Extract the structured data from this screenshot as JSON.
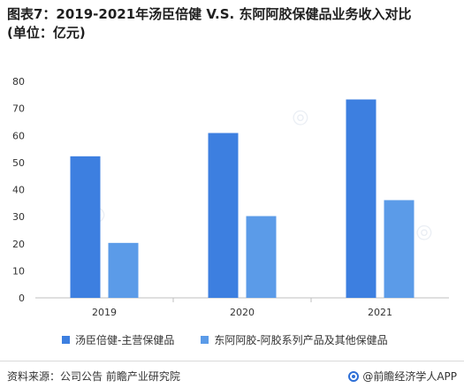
{
  "title": {
    "line1": "图表7：2019-2021年汤臣倍健 V.S. 东阿阿胶保健品业务收入对比",
    "line2": "(单位：亿元)"
  },
  "chart_data": {
    "type": "bar",
    "categories": [
      "2019",
      "2020",
      "2021"
    ],
    "series": [
      {
        "name": "汤臣倍健-主营保健品",
        "values": [
          52.3,
          60.9,
          73.3
        ],
        "color": "#3d7fe0"
      },
      {
        "name": "东阿阿胶-阿胶系列产品及其他保健品",
        "values": [
          20.3,
          30.2,
          36.1
        ],
        "color": "#5b9be8"
      }
    ],
    "ylim": [
      0,
      80
    ],
    "yticks": [
      0,
      10,
      20,
      30,
      40,
      50,
      60,
      70,
      80
    ],
    "grid": false,
    "legend_position": "bottom"
  },
  "footer": {
    "source": "资料来源：公司公告 前瞻产业研究院",
    "brand": "@前瞻经济学人APP"
  },
  "colors": {
    "axis": "#bfbfbf",
    "tick_text": "#333333",
    "brand": "#2e6fd6"
  }
}
